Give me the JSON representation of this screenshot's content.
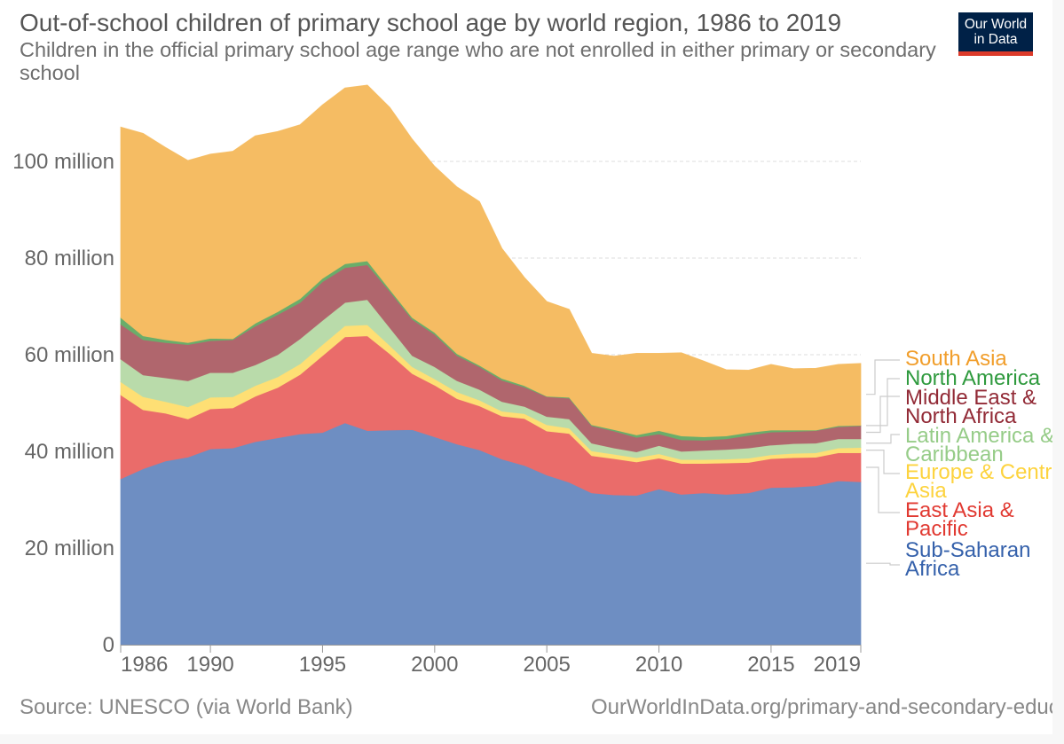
{
  "header": {
    "title": "Out-of-school children of primary school age by world region, 1986 to 2019",
    "subtitle": "Children in the official primary school age range who are not enrolled in either primary or secondary school",
    "logo_line1": "Our World",
    "logo_line2": "in Data"
  },
  "footer": {
    "source": "Source: UNESCO (via World Bank)",
    "url": "OurWorldInData.org/primary-and-secondary-education"
  },
  "chart_data": {
    "type": "area",
    "stacked": true,
    "title": "Out-of-school children of primary school age by world region, 1986 to 2019",
    "xlabel": "",
    "ylabel": "",
    "ylim": [
      0,
      115
    ],
    "y_unit": "million",
    "xlim": [
      1986,
      2019
    ],
    "grid": "horizontal dashed",
    "legend": "right, inline labels",
    "y_ticks": [
      "0",
      "20 million",
      "40 million",
      "60 million",
      "80 million",
      "100 million"
    ],
    "y_tick_values": [
      0,
      20,
      40,
      60,
      80,
      100
    ],
    "x_ticks": [
      "1986",
      "1990",
      "1995",
      "2000",
      "2005",
      "2010",
      "2015",
      "2019"
    ],
    "x": [
      1986,
      1987,
      1988,
      1989,
      1990,
      1991,
      1992,
      1993,
      1994,
      1995,
      1996,
      1997,
      1998,
      1999,
      2000,
      2001,
      2002,
      2003,
      2004,
      2005,
      2006,
      2007,
      2008,
      2009,
      2010,
      2011,
      2012,
      2013,
      2014,
      2015,
      2016,
      2017,
      2018,
      2019
    ],
    "series": [
      {
        "name": "Sub-Saharan Africa",
        "color": "#6e8ec2",
        "label_color": "#3561ab",
        "values": [
          34.3,
          36.4,
          38.0,
          38.8,
          40.5,
          40.7,
          42.0,
          42.8,
          43.6,
          43.9,
          45.9,
          44.3,
          44.4,
          44.5,
          43.0,
          41.5,
          40.3,
          38.4,
          37.1,
          35.1,
          33.6,
          31.4,
          31.0,
          30.9,
          32.2,
          31.1,
          31.4,
          31.1,
          31.4,
          32.5,
          32.6,
          32.9,
          33.9,
          33.7
        ]
      },
      {
        "name": "East Asia & Pacific",
        "color": "#ea6c6a",
        "label_color": "#e13a32",
        "values": [
          17.4,
          12.2,
          9.9,
          7.9,
          8.3,
          8.3,
          9.4,
          10.4,
          12.3,
          15.9,
          17.8,
          19.6,
          15.8,
          11.6,
          10.7,
          9.4,
          9.1,
          8.9,
          9.7,
          9.1,
          10.1,
          7.7,
          7.5,
          6.9,
          6.4,
          6.4,
          6.1,
          6.5,
          6.3,
          6.0,
          6.1,
          5.9,
          5.8,
          6.0
        ]
      },
      {
        "name": "Europe & Central Asia",
        "color": "#fedf74",
        "label_color": "#fdd33e",
        "values": [
          2.7,
          2.7,
          2.4,
          2.5,
          2.4,
          2.3,
          2.2,
          2.2,
          2.2,
          2.3,
          2.3,
          2.3,
          1.7,
          1.4,
          1.3,
          1.4,
          1.2,
          1.0,
          1.0,
          1.3,
          1.1,
          1.0,
          0.9,
          0.9,
          0.9,
          0.8,
          0.8,
          0.8,
          0.9,
          0.8,
          0.9,
          0.9,
          1.0,
          1.1
        ]
      },
      {
        "name": "Latin America & Caribbean",
        "color": "#b9dbaa",
        "label_color": "#96cc88",
        "values": [
          4.7,
          4.5,
          4.9,
          5.4,
          5.1,
          5.0,
          4.3,
          4.6,
          5.2,
          5.0,
          4.8,
          5.2,
          3.7,
          2.3,
          2.5,
          2.3,
          2.2,
          2.0,
          1.5,
          1.7,
          1.9,
          1.6,
          1.3,
          1.2,
          1.7,
          1.7,
          1.9,
          2.0,
          2.1,
          2.0,
          2.0,
          2.0,
          1.9,
          1.8
        ]
      },
      {
        "name": "Middle East & North Africa",
        "color": "#b0666d",
        "label_color": "#922a36",
        "values": [
          7.2,
          7.3,
          7.3,
          7.5,
          6.6,
          6.8,
          8.0,
          8.3,
          7.5,
          8.0,
          7.2,
          7.2,
          7.5,
          7.5,
          6.7,
          5.2,
          4.7,
          4.4,
          4.0,
          4.1,
          4.3,
          3.6,
          3.5,
          3.0,
          2.4,
          2.4,
          2.1,
          2.2,
          2.6,
          2.7,
          2.5,
          2.6,
          2.5,
          2.7
        ]
      },
      {
        "name": "North America",
        "color": "#6aad6a",
        "label_color": "#2f9a3e",
        "values": [
          1.4,
          0.8,
          0.6,
          0.4,
          0.5,
          0.2,
          0.6,
          0.6,
          0.8,
          0.7,
          0.8,
          0.8,
          0.4,
          0.4,
          0.4,
          0.4,
          0.3,
          0.4,
          0.3,
          0.1,
          0.2,
          0.2,
          0.3,
          0.5,
          0.7,
          0.8,
          0.7,
          0.6,
          0.6,
          0.4,
          0.3,
          0.1,
          0.2,
          0.1
        ]
      },
      {
        "name": "South Asia",
        "color": "#f5bc63",
        "label_color": "#f19e2b",
        "values": [
          39.4,
          41.9,
          39.8,
          37.7,
          38.1,
          38.8,
          38.8,
          37.3,
          36.0,
          35.9,
          36.4,
          36.4,
          37.7,
          36.9,
          34.4,
          34.5,
          33.9,
          26.9,
          22.4,
          19.6,
          18.2,
          14.8,
          15.2,
          16.9,
          16.0,
          17.2,
          15.7,
          13.7,
          12.9,
          13.6,
          12.7,
          12.8,
          12.7,
          12.8
        ]
      }
    ]
  }
}
